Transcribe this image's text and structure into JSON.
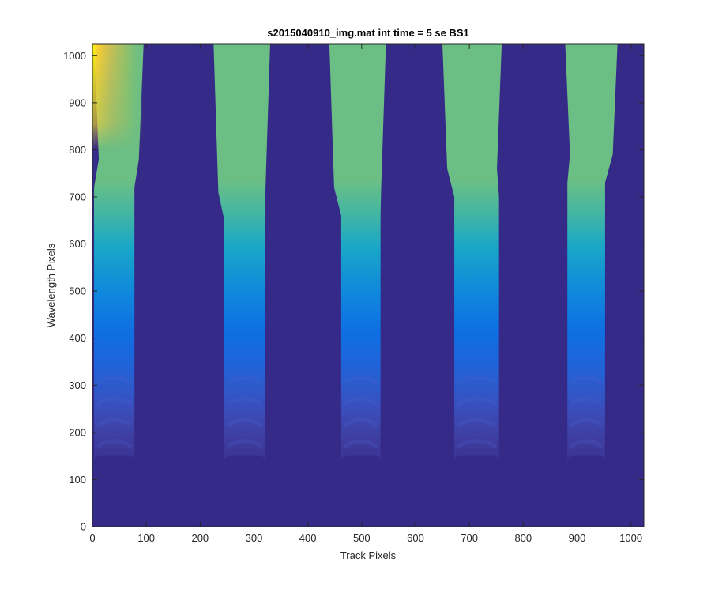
{
  "chart_data": {
    "type": "heatmap",
    "title": "s2015040910_img.mat int time = 5 se   BS1",
    "xlabel": "Track Pixels",
    "ylabel": "Wavelength Pixels",
    "xlim": [
      0,
      1024
    ],
    "ylim": [
      0,
      1024
    ],
    "xticks": [
      0,
      100,
      200,
      300,
      400,
      500,
      600,
      700,
      800,
      900,
      1000
    ],
    "yticks": [
      0,
      100,
      200,
      300,
      400,
      500,
      600,
      700,
      800,
      900,
      1000
    ],
    "colormap": "parula",
    "background_color": "#352a87",
    "tracks": [
      {
        "x_min": 3,
        "x_max": 78,
        "onset_y": 150,
        "waist_y": 720,
        "top_x_min": 3,
        "top_x_max": 95,
        "bright_left_edge": true
      },
      {
        "x_min": 245,
        "x_max": 320,
        "onset_y": 150,
        "waist_y": 650,
        "top_x_min": 225,
        "top_x_max": 330,
        "bright_left_edge": false
      },
      {
        "x_min": 462,
        "x_max": 535,
        "onset_y": 150,
        "waist_y": 660,
        "top_x_min": 440,
        "top_x_max": 545,
        "bright_left_edge": false
      },
      {
        "x_min": 672,
        "x_max": 755,
        "onset_y": 150,
        "waist_y": 700,
        "top_x_min": 650,
        "top_x_max": 760,
        "bright_left_edge": false
      },
      {
        "x_min": 882,
        "x_max": 952,
        "onset_y": 150,
        "waist_y": 730,
        "top_x_min": 878,
        "top_x_max": 975,
        "bright_left_edge": false
      }
    ]
  }
}
